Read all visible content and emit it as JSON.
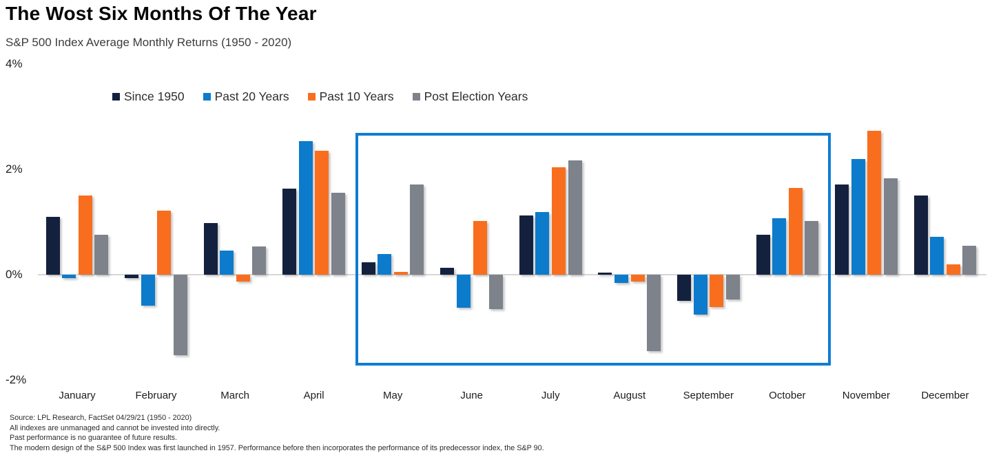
{
  "header": {
    "title": "The Wost Six Months Of The Year",
    "subtitle": "S&P 500 Index Average Monthly Returns (1950 - 2020)"
  },
  "chart_data": {
    "type": "bar",
    "title": "The Wost Six Months Of The Year",
    "subtitle": "S&P 500 Index Average Monthly Returns (1950 - 2020)",
    "categories": [
      "January",
      "February",
      "March",
      "April",
      "May",
      "June",
      "July",
      "August",
      "September",
      "October",
      "November",
      "December"
    ],
    "series": [
      {
        "name": "Since 1950",
        "color": "#14213e",
        "values": [
          1.1,
          -0.06,
          0.98,
          1.63,
          0.23,
          0.13,
          1.12,
          0.04,
          -0.5,
          0.76,
          1.71,
          1.5
        ]
      },
      {
        "name": "Past 20 Years",
        "color": "#0c7bcb",
        "values": [
          -0.06,
          -0.59,
          0.46,
          2.53,
          0.39,
          -0.63,
          1.19,
          -0.16,
          -0.76,
          1.07,
          2.2,
          0.72
        ]
      },
      {
        "name": "Past 10 Years",
        "color": "#f96e1e",
        "values": [
          1.5,
          1.22,
          -0.13,
          2.35,
          0.05,
          1.02,
          2.04,
          -0.13,
          -0.61,
          1.65,
          2.73,
          0.2
        ]
      },
      {
        "name": "Post Election Years",
        "color": "#7d828b",
        "values": [
          0.76,
          -1.53,
          0.54,
          1.55,
          1.71,
          -0.65,
          2.17,
          -1.45,
          -0.47,
          1.02,
          1.83,
          0.55
        ]
      }
    ],
    "y_ticks": [
      {
        "value": 4,
        "label": "4%"
      },
      {
        "value": 2,
        "label": "2%"
      },
      {
        "value": 0,
        "label": "0%"
      },
      {
        "value": -2,
        "label": "-2%"
      }
    ],
    "ylim": [
      -2,
      4
    ],
    "grid": false,
    "legend_position": "top",
    "highlight": {
      "from_month": "May",
      "to_month": "October",
      "box_color": "#0e7cd4"
    }
  },
  "footer": {
    "lines": [
      "Source: LPL Research, FactSet 04/29/21  (1950 - 2020)",
      "All indexes are unmanaged and cannot be invested into directly.",
      "Past performance is no guarantee of future results.",
      "The modern design of the S&P 500 Index was first launched in 1957. Performance before then incorporates the performance of its  predecessor index, the S&P 90."
    ]
  }
}
